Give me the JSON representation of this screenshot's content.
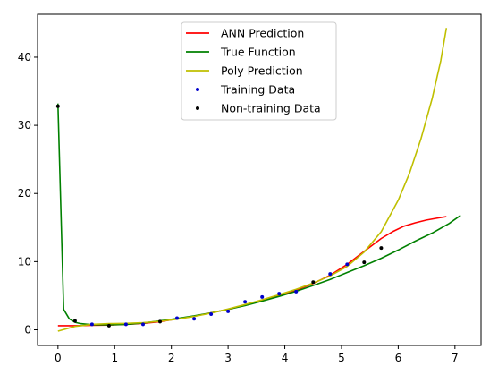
{
  "chart_data": {
    "type": "line",
    "xlim": [
      -0.36,
      7.46
    ],
    "ylim": [
      -2.3,
      46.3
    ],
    "xticks": [
      0,
      1,
      2,
      3,
      4,
      5,
      6,
      7
    ],
    "xtick_labels": [
      "0",
      "1",
      "2",
      "3",
      "4",
      "5",
      "6",
      "7"
    ],
    "yticks": [
      0,
      10,
      20,
      30,
      40
    ],
    "ytick_labels": [
      "0",
      "10",
      "20",
      "30",
      "40"
    ],
    "grid": false,
    "legend_position": "top-center",
    "series": [
      {
        "name": "ANN Prediction",
        "kind": "line",
        "color": "#ff0000",
        "x": [
          0,
          0.3,
          0.6,
          0.9,
          1.2,
          1.5,
          1.8,
          2.1,
          2.4,
          2.7,
          3.0,
          3.3,
          3.6,
          3.9,
          4.2,
          4.5,
          4.8,
          5.1,
          5.4,
          5.7,
          5.9,
          6.1,
          6.3,
          6.5,
          6.7,
          6.85
        ],
        "y": [
          0.6,
          0.6,
          0.65,
          0.7,
          0.8,
          0.95,
          1.2,
          1.6,
          2.0,
          2.5,
          3.0,
          3.6,
          4.3,
          5.0,
          5.8,
          6.8,
          8.0,
          9.6,
          11.5,
          13.4,
          14.4,
          15.2,
          15.7,
          16.1,
          16.4,
          16.6
        ]
      },
      {
        "name": "True Function",
        "kind": "line",
        "color": "#008000",
        "x": [
          0,
          0.1,
          0.2,
          0.3,
          0.4,
          0.6,
          0.9,
          1.2,
          1.5,
          1.8,
          2.1,
          2.4,
          2.7,
          3.0,
          3.3,
          3.6,
          3.9,
          4.2,
          4.5,
          4.8,
          5.1,
          5.4,
          5.7,
          6.0,
          6.3,
          6.6,
          6.9,
          7.1
        ],
        "y": [
          33.2,
          3.0,
          1.6,
          1.1,
          0.9,
          0.75,
          0.72,
          0.8,
          1.0,
          1.3,
          1.65,
          2.05,
          2.5,
          3.0,
          3.55,
          4.2,
          4.9,
          5.65,
          6.5,
          7.4,
          8.4,
          9.4,
          10.5,
          11.7,
          13.0,
          14.2,
          15.6,
          16.8
        ]
      },
      {
        "name": "Poly Prediction",
        "kind": "line",
        "color": "#bfbf00",
        "x": [
          0,
          0.3,
          0.6,
          0.9,
          1.2,
          1.5,
          1.8,
          2.1,
          2.4,
          2.7,
          3.0,
          3.3,
          3.6,
          3.9,
          4.2,
          4.5,
          4.8,
          5.1,
          5.4,
          5.7,
          6.0,
          6.2,
          6.4,
          6.6,
          6.75,
          6.85
        ],
        "y": [
          -0.2,
          0.5,
          0.8,
          0.9,
          0.95,
          1.05,
          1.25,
          1.55,
          1.95,
          2.45,
          3.05,
          3.7,
          4.4,
          5.15,
          5.95,
          6.85,
          7.9,
          9.3,
          11.4,
          14.4,
          19.0,
          23.0,
          28.0,
          34.0,
          39.5,
          44.3
        ]
      },
      {
        "name": "Training Data",
        "kind": "scatter",
        "color": "#0000cc",
        "x": [
          0.6,
          1.2,
          1.5,
          2.1,
          2.4,
          2.7,
          3.0,
          3.3,
          3.6,
          3.9,
          4.2,
          4.8,
          5.1
        ],
        "y": [
          0.8,
          0.8,
          0.8,
          1.7,
          1.6,
          2.3,
          2.7,
          4.1,
          4.8,
          5.3,
          5.6,
          8.2,
          9.6
        ]
      },
      {
        "name": "Non-training Data",
        "kind": "scatter",
        "color": "#000000",
        "x": [
          0,
          0.3,
          0.9,
          1.8,
          4.5,
          5.4,
          5.7
        ],
        "y": [
          32.8,
          1.3,
          0.6,
          1.2,
          7.0,
          9.9,
          12.0
        ]
      }
    ]
  }
}
